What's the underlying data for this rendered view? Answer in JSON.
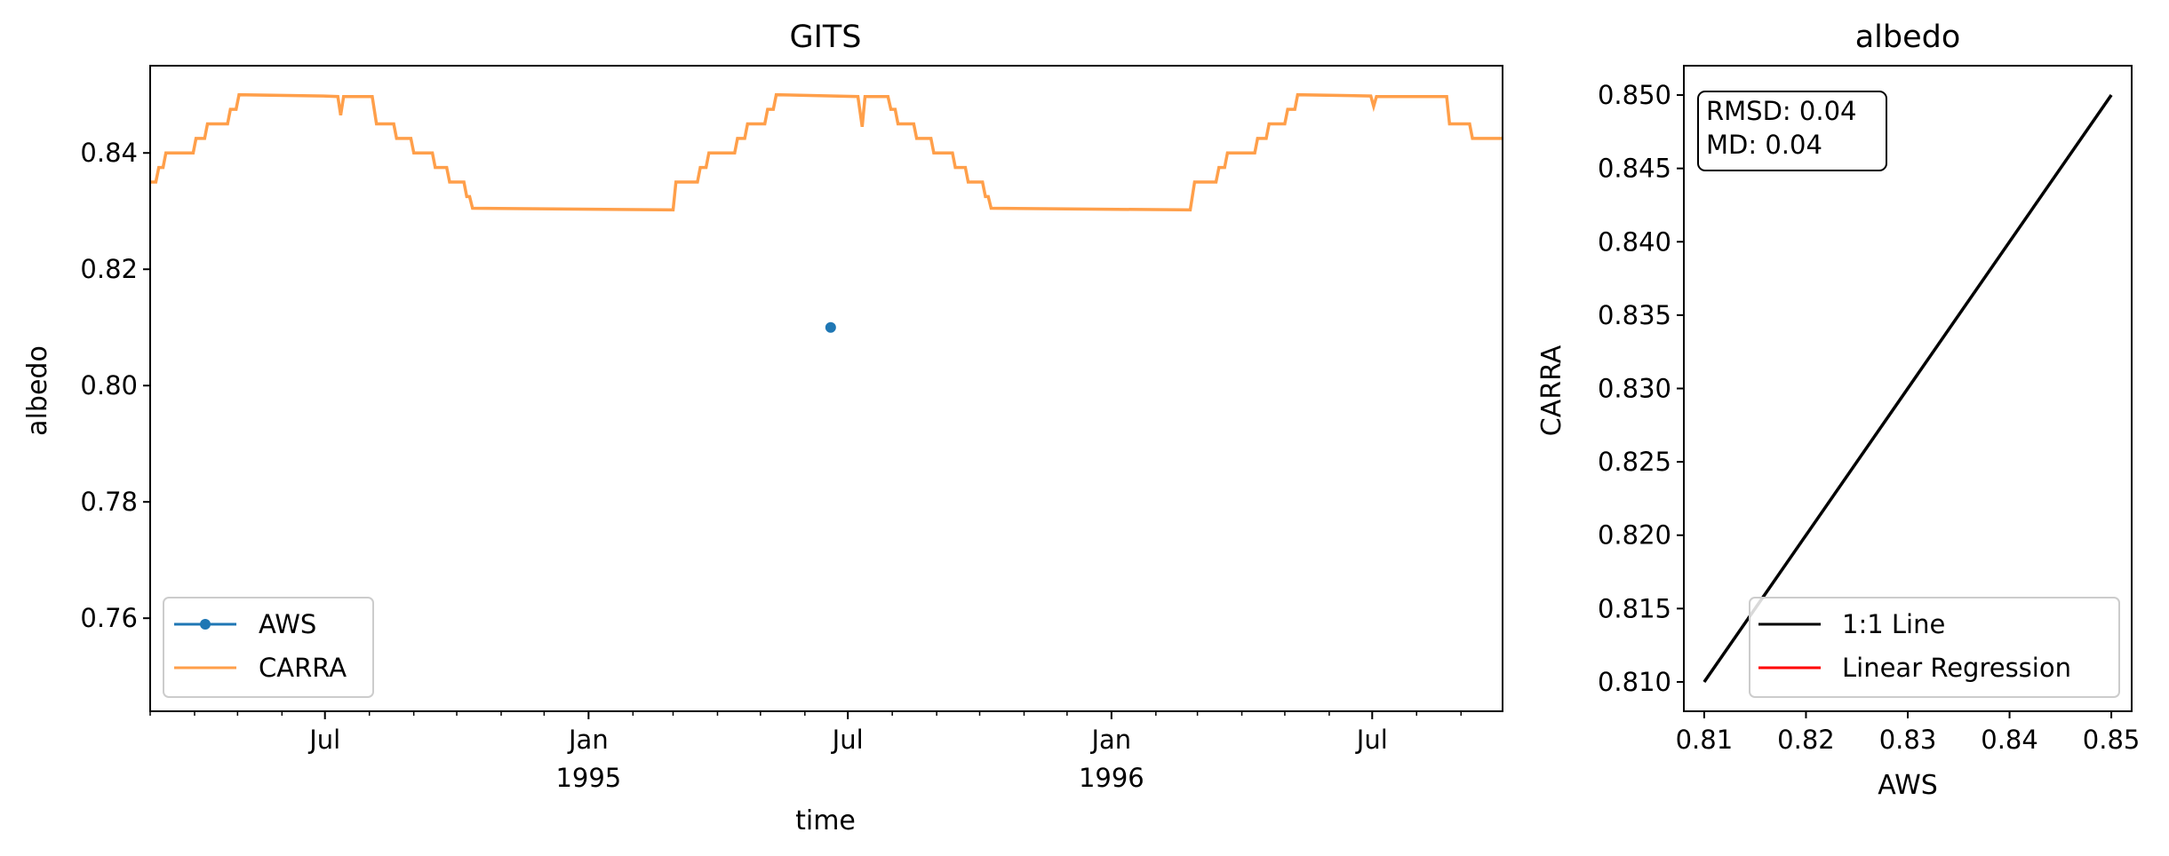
{
  "chart_data": [
    {
      "type": "line",
      "title": "GITS",
      "xlabel": "time",
      "ylabel": "albedo",
      "x_axis": "date",
      "xlim": [
        "1994-03-01",
        "1996-09-30"
      ],
      "ylim": [
        0.744,
        0.855
      ],
      "y_ticks": [
        0.76,
        0.78,
        0.8,
        0.82,
        0.84
      ],
      "y_tick_labels": [
        "0.76",
        "0.78",
        "0.80",
        "0.82",
        "0.84"
      ],
      "x_ticks": [
        {
          "date": "1994-07-01",
          "label": "Jul",
          "sub": ""
        },
        {
          "date": "1995-01-01",
          "label": "Jan",
          "sub": "1995"
        },
        {
          "date": "1995-07-01",
          "label": "Jul",
          "sub": ""
        },
        {
          "date": "1996-01-01",
          "label": "Jan",
          "sub": "1996"
        },
        {
          "date": "1996-07-01",
          "label": "Jul",
          "sub": ""
        }
      ],
      "grid": false,
      "legend_position": "lower-left",
      "series": [
        {
          "name": "AWS",
          "color": "#1f77b4",
          "marker": "circle",
          "points": [
            [
              "1995-06-19",
              0.81
            ]
          ]
        },
        {
          "name": "CARRA",
          "color": "#ff7f0e",
          "points": [
            [
              "1994-03-01",
              0.835
            ],
            [
              "1994-03-05",
              0.835
            ],
            [
              "1994-03-07",
              0.8375
            ],
            [
              "1994-03-10",
              0.8375
            ],
            [
              "1994-03-12",
              0.84
            ],
            [
              "1994-03-31",
              0.84
            ],
            [
              "1994-04-02",
              0.8425
            ],
            [
              "1994-04-08",
              0.8425
            ],
            [
              "1994-04-10",
              0.845
            ],
            [
              "1994-04-24",
              0.845
            ],
            [
              "1994-04-26",
              0.8475
            ],
            [
              "1994-04-30",
              0.8475
            ],
            [
              "1994-05-02",
              0.85
            ],
            [
              "1994-06-30",
              0.8498
            ],
            [
              "1994-07-10",
              0.8497
            ],
            [
              "1994-07-12",
              0.8465
            ],
            [
              "1994-07-14",
              0.8497
            ],
            [
              "1994-08-03",
              0.8497
            ],
            [
              "1994-08-06",
              0.845
            ],
            [
              "1994-08-18",
              0.845
            ],
            [
              "1994-08-20",
              0.8425
            ],
            [
              "1994-08-30",
              0.8425
            ],
            [
              "1994-09-01",
              0.84
            ],
            [
              "1994-09-14",
              0.84
            ],
            [
              "1994-09-16",
              0.8375
            ],
            [
              "1994-09-24",
              0.8375
            ],
            [
              "1994-09-26",
              0.835
            ],
            [
              "1994-10-06",
              0.835
            ],
            [
              "1994-10-08",
              0.8325
            ],
            [
              "1994-10-10",
              0.8325
            ],
            [
              "1994-10-12",
              0.8305
            ],
            [
              "1995-03-01",
              0.8302
            ],
            [
              "1995-03-03",
              0.835
            ],
            [
              "1995-03-18",
              0.835
            ],
            [
              "1995-03-20",
              0.8375
            ],
            [
              "1995-03-24",
              0.8375
            ],
            [
              "1995-03-26",
              0.84
            ],
            [
              "1995-04-13",
              0.84
            ],
            [
              "1995-04-15",
              0.8425
            ],
            [
              "1995-04-20",
              0.8425
            ],
            [
              "1995-04-22",
              0.845
            ],
            [
              "1995-05-04",
              0.845
            ],
            [
              "1995-05-06",
              0.8475
            ],
            [
              "1995-05-10",
              0.8475
            ],
            [
              "1995-05-12",
              0.85
            ],
            [
              "1995-07-08",
              0.8497
            ],
            [
              "1995-07-11",
              0.8445
            ],
            [
              "1995-07-13",
              0.8497
            ],
            [
              "1995-07-29",
              0.8497
            ],
            [
              "1995-07-31",
              0.8475
            ],
            [
              "1995-08-03",
              0.8475
            ],
            [
              "1995-08-05",
              0.845
            ],
            [
              "1995-08-16",
              0.845
            ],
            [
              "1995-08-18",
              0.8425
            ],
            [
              "1995-08-28",
              0.8425
            ],
            [
              "1995-08-30",
              0.84
            ],
            [
              "1995-09-12",
              0.84
            ],
            [
              "1995-09-14",
              0.8375
            ],
            [
              "1995-09-21",
              0.8375
            ],
            [
              "1995-09-23",
              0.835
            ],
            [
              "1995-10-03",
              0.835
            ],
            [
              "1995-10-05",
              0.8325
            ],
            [
              "1995-10-07",
              0.8325
            ],
            [
              "1995-10-09",
              0.8305
            ],
            [
              "1996-02-25",
              0.8302
            ],
            [
              "1996-02-28",
              0.835
            ],
            [
              "1996-03-14",
              0.835
            ],
            [
              "1996-03-16",
              0.8375
            ],
            [
              "1996-03-20",
              0.8375
            ],
            [
              "1996-03-22",
              0.84
            ],
            [
              "1996-04-10",
              0.84
            ],
            [
              "1996-04-12",
              0.8425
            ],
            [
              "1996-04-18",
              0.8425
            ],
            [
              "1996-04-20",
              0.845
            ],
            [
              "1996-05-01",
              0.845
            ],
            [
              "1996-05-03",
              0.8475
            ],
            [
              "1996-05-08",
              0.8475
            ],
            [
              "1996-05-10",
              0.85
            ],
            [
              "1996-06-30",
              0.8498
            ],
            [
              "1996-07-02",
              0.848
            ],
            [
              "1996-07-04",
              0.8497
            ],
            [
              "1996-08-22",
              0.8497
            ],
            [
              "1996-08-24",
              0.845
            ],
            [
              "1996-09-07",
              0.845
            ],
            [
              "1996-09-09",
              0.8425
            ],
            [
              "1996-09-30",
              0.8425
            ]
          ]
        }
      ]
    },
    {
      "type": "line",
      "title": "albedo",
      "xlabel": "AWS",
      "ylabel": "CARRA",
      "xlim": [
        0.808,
        0.852
      ],
      "ylim": [
        0.808,
        0.852
      ],
      "x_ticks": [
        0.81,
        0.82,
        0.83,
        0.84,
        0.85
      ],
      "x_tick_labels": [
        "0.81",
        "0.82",
        "0.83",
        "0.84",
        "0.85"
      ],
      "y_ticks": [
        0.81,
        0.815,
        0.82,
        0.825,
        0.83,
        0.835,
        0.84,
        0.845,
        0.85
      ],
      "y_tick_labels": [
        "0.810",
        "0.815",
        "0.820",
        "0.825",
        "0.830",
        "0.835",
        "0.840",
        "0.845",
        "0.850"
      ],
      "grid": false,
      "legend_position": "lower-right",
      "annotation": [
        "RMSD: 0.04",
        "MD: 0.04"
      ],
      "series": [
        {
          "name": "1:1 Line",
          "color": "#000000",
          "points": [
            [
              0.81,
              0.81
            ],
            [
              0.85,
              0.85
            ]
          ]
        },
        {
          "name": "Linear Regression",
          "color": "#ff0000",
          "points": []
        }
      ]
    }
  ]
}
